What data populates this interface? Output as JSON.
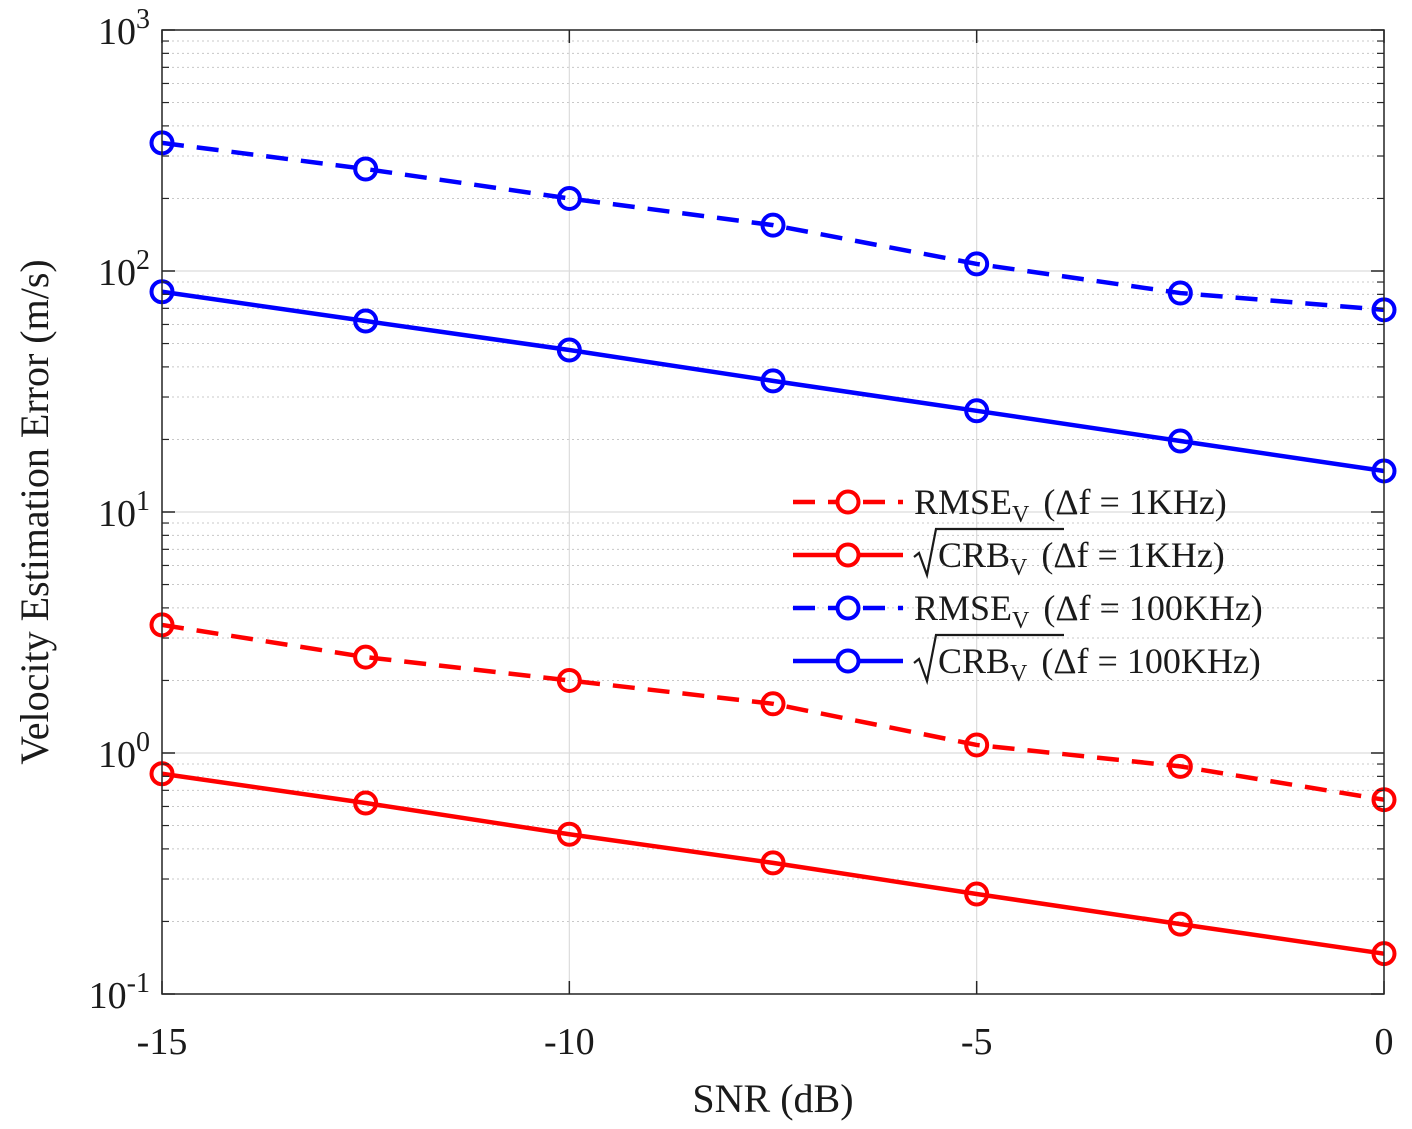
{
  "chart_data": {
    "type": "line",
    "x_scale": "linear",
    "y_scale": "log",
    "xlabel": "SNR (dB)",
    "ylabel": "Velocity Estimation Error (m/s)",
    "xlim": [
      -15,
      0
    ],
    "ylim": [
      0.1,
      1000
    ],
    "grid": true,
    "legend_position": "right-center",
    "x": [
      -15,
      -12.5,
      -10,
      -7.5,
      -5,
      -2.5,
      0
    ],
    "x_ticks": [
      {
        "value": -15,
        "label": "-15"
      },
      {
        "value": -10,
        "label": "-10"
      },
      {
        "value": -5,
        "label": "-5"
      },
      {
        "value": 0,
        "label": "0"
      }
    ],
    "y_ticks": [
      {
        "value": 0.1,
        "base": "10",
        "exp": "-1"
      },
      {
        "value": 1,
        "base": "10",
        "exp": "0"
      },
      {
        "value": 10,
        "base": "10",
        "exp": "1"
      },
      {
        "value": 100,
        "base": "10",
        "exp": "2"
      },
      {
        "value": 1000,
        "base": "10",
        "exp": "3"
      }
    ],
    "series": [
      {
        "name": "RMSE_V (Δf = 1KHz)",
        "label": {
          "sqrt": false,
          "main": "RMSE",
          "sub": "V",
          "cond": "(Δf = 1KHz)"
        },
        "color": "#ff0000",
        "dash": true,
        "marker": "circle",
        "values": [
          3.4,
          2.5,
          2.0,
          1.6,
          1.08,
          0.88,
          0.64
        ]
      },
      {
        "name": "sqrt(CRB_V) (Δf = 1KHz)",
        "label": {
          "sqrt": true,
          "main": "CRB",
          "sub": "V",
          "cond": "(Δf = 1KHz)"
        },
        "color": "#ff0000",
        "dash": false,
        "marker": "circle",
        "values": [
          0.82,
          0.62,
          0.46,
          0.35,
          0.26,
          0.195,
          0.147
        ]
      },
      {
        "name": "RMSE_V (Δf = 100KHz)",
        "label": {
          "sqrt": false,
          "main": "RMSE",
          "sub": "V",
          "cond": "(Δf = 100KHz)"
        },
        "color": "#0000ff",
        "dash": true,
        "marker": "circle",
        "values": [
          340,
          265,
          200,
          155,
          107,
          81,
          69
        ]
      },
      {
        "name": "sqrt(CRB_V) (Δf = 100KHz)",
        "label": {
          "sqrt": true,
          "main": "CRB",
          "sub": "V",
          "cond": "(Δf = 100KHz)"
        },
        "color": "#0000ff",
        "dash": false,
        "marker": "circle",
        "values": [
          82,
          62,
          47,
          35,
          26.3,
          19.7,
          14.8
        ]
      }
    ]
  }
}
